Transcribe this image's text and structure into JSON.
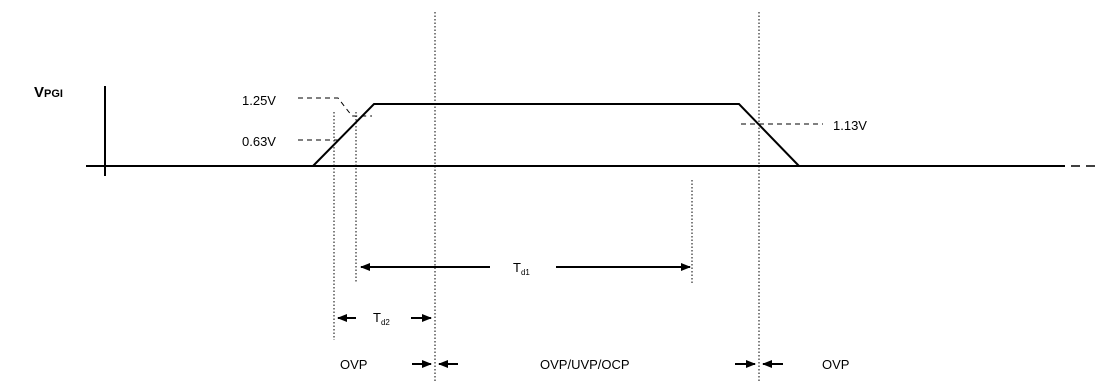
{
  "signal": {
    "main": "V",
    "subscript": "PGI"
  },
  "thresholds": {
    "upper": "1.25V",
    "lower": "0.63V",
    "falling": "1.13V"
  },
  "timings": {
    "td1_main": "T",
    "td1_sub": "d1",
    "td2_main": "T",
    "td2_sub": "d2"
  },
  "regions": {
    "left": "OVP",
    "middle": "OVP/UVP/OCP",
    "right": "OVP"
  }
}
